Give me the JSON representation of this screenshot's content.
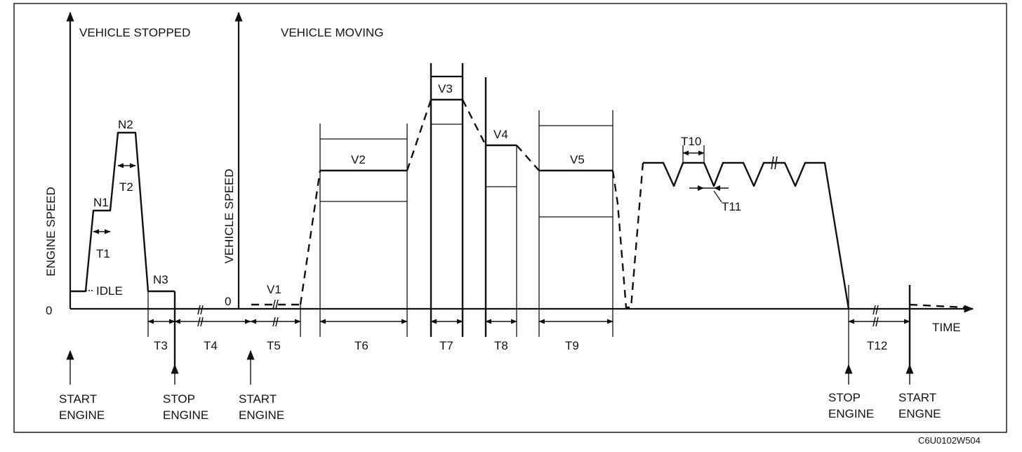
{
  "sections": {
    "stopped": "VEHICLE STOPPED",
    "moving": "VEHICLE MOVING"
  },
  "axes": {
    "engine_speed": "ENGINE SPEED",
    "vehicle_speed": "VEHICLE SPEED",
    "zero_left": "0",
    "zero_right": "0",
    "time": "TIME"
  },
  "levels": {
    "idle": "IDLE",
    "n1": "N1",
    "n2": "N2",
    "n3": "N3",
    "v1": "V1",
    "v2": "V2",
    "v3": "V3",
    "v4": "V4",
    "v5": "V5"
  },
  "intervals": {
    "t1": "T1",
    "t2": "T2",
    "t3": "T3",
    "t4": "T4",
    "t5": "T5",
    "t6": "T6",
    "t7": "T7",
    "t8": "T8",
    "t9": "T9",
    "t10": "T10",
    "t11": "T11",
    "t12": "T12"
  },
  "events": [
    {
      "line1": "START",
      "line2": "ENGINE"
    },
    {
      "line1": "STOP",
      "line2": "ENGINE"
    },
    {
      "line1": "START",
      "line2": "ENGINE"
    },
    {
      "line1": "STOP",
      "line2": "ENGINE"
    },
    {
      "line1": "START",
      "line2": "ENGNE"
    }
  ],
  "figure_code": "C6U0102W504"
}
